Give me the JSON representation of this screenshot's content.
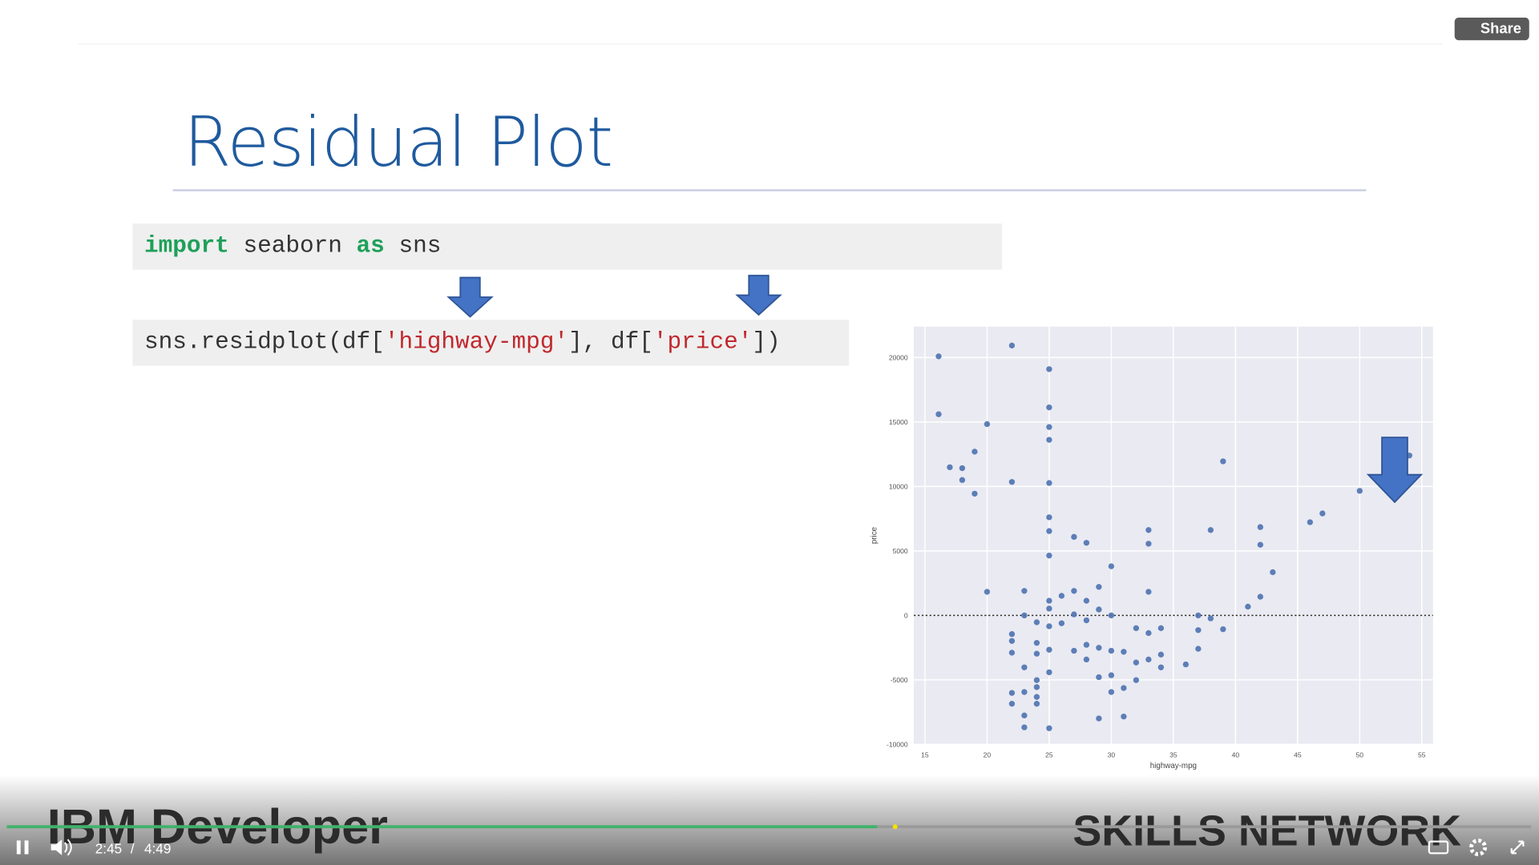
{
  "player": {
    "share": "Share",
    "current_time": "2:45",
    "separator": "/",
    "duration": "4:49"
  },
  "slide": {
    "title": "Residual Plot",
    "code": [
      [
        {
          "text": "import",
          "color": "#1fa05a"
        },
        {
          "text": " seaborn ",
          "color": "#333333"
        },
        {
          "text": "as",
          "color": "#1fa05a"
        },
        {
          "text": " sns",
          "color": "#333333"
        }
      ],
      [
        {
          "text": "sns.residplot(df[",
          "color": "#333333"
        },
        {
          "text": "'highway-mpg'",
          "color": "#c0282d"
        },
        {
          "text": "], df[",
          "color": "#333333"
        },
        {
          "text": "'price'",
          "color": "#c0282d"
        },
        {
          "text": "])",
          "color": "#333333"
        }
      ]
    ],
    "footer_left": "IBM Developer",
    "footer_right": "SKILLS NETWORK"
  },
  "chart_data": {
    "type": "scatter",
    "xlabel": "highway-mpg",
    "ylabel": "price",
    "color": "#4c72b0",
    "grid": true,
    "hline": 0,
    "xlim": [
      14.1,
      55.9
    ],
    "ylim": [
      -10000,
      22400
    ],
    "xticks": [
      15,
      20,
      25,
      30,
      35,
      40,
      45,
      50,
      55
    ],
    "yticks": [
      -10000,
      -5000,
      0,
      5000,
      10000,
      15000,
      20000
    ],
    "x": [
      16.1,
      16.1,
      17,
      18,
      18,
      19,
      19,
      20,
      20,
      22,
      22,
      22,
      22,
      22,
      22,
      22,
      23,
      23,
      23,
      23,
      23,
      23,
      24,
      24,
      24,
      24,
      24,
      24,
      24,
      25,
      25,
      25,
      25,
      25,
      25,
      25,
      25,
      25,
      25,
      25,
      25,
      25,
      25,
      26,
      26,
      27,
      27,
      27,
      27,
      28,
      28,
      28,
      28,
      28,
      29,
      29,
      29,
      29,
      29,
      30,
      30,
      30,
      30,
      30,
      31,
      31,
      31,
      32,
      32,
      32,
      33,
      33,
      33,
      33,
      33,
      34,
      34,
      34,
      36,
      37,
      37,
      37,
      38,
      38,
      39,
      39,
      41,
      42,
      42,
      42,
      43,
      46,
      47,
      50,
      54
    ],
    "y": [
      20090,
      15600,
      11490,
      11420,
      10500,
      12700,
      9440,
      14840,
      1830,
      20930,
      10350,
      -1450,
      -1980,
      -2890,
      -6010,
      -6850,
      1900,
      0,
      -4030,
      -5940,
      -7760,
      -8680,
      -2130,
      -2970,
      -5020,
      -5560,
      -6320,
      -6850,
      -530,
      19100,
      16130,
      14610,
      13620,
      10270,
      7610,
      6540,
      4640,
      1140,
      530,
      -840,
      -2660,
      -4410,
      -8750,
      1520,
      -610,
      6090,
      1900,
      80,
      -2740,
      5630,
      1140,
      -380,
      -2280,
      -3420,
      2210,
      460,
      -2510,
      -4790,
      -7990,
      3810,
      0,
      -2740,
      -4640,
      -5940,
      -2820,
      -5630,
      -7840,
      -990,
      -3650,
      -5020,
      6620,
      5560,
      1830,
      -1370,
      -3420,
      -990,
      -3040,
      -4030,
      -3800,
      0,
      -1140,
      -2590,
      6620,
      -230,
      11950,
      -1070,
      680,
      6850,
      5480,
      1450,
      3350,
      7230,
      7910,
      9660,
      12400
    ]
  }
}
